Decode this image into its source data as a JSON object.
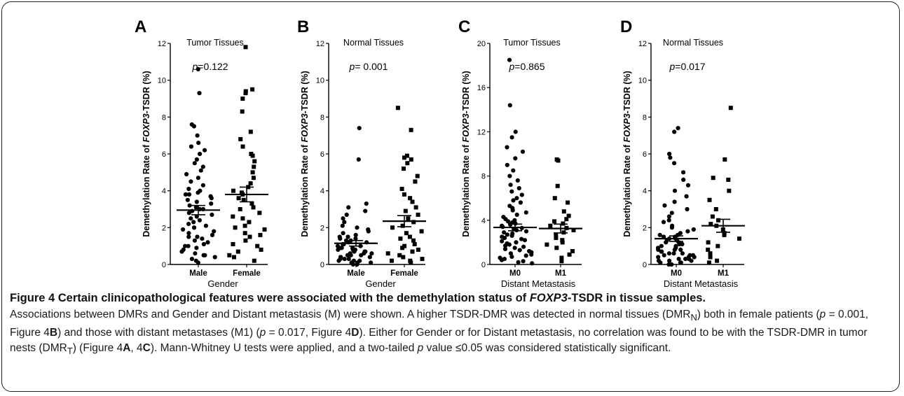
{
  "figure": {
    "caption_title_parts": [
      {
        "text": "Figure 4 Certain clinicopathological features were associated with the demethylation status of ",
        "italic": false
      },
      {
        "text": "FOXP3",
        "italic": true
      },
      {
        "text": "-TSDR in tissue samples.",
        "italic": false
      }
    ],
    "caption_body_parts": [
      {
        "text": "Associations between DMRs and Gender and Distant metastasis (M) were shown. A higher TSDR-DMR was detected in normal tissues (DMR"
      },
      {
        "text": "N",
        "sub": true
      },
      {
        "text": ") both in female patients ("
      },
      {
        "text": "p",
        "italic": true
      },
      {
        "text": " = 0.001, Figure 4"
      },
      {
        "text": "B",
        "bold": true
      },
      {
        "text": ") and those with distant metastases (M1) ("
      },
      {
        "text": "p",
        "italic": true
      },
      {
        "text": " = 0.017, Figure 4"
      },
      {
        "text": "D",
        "bold": true
      },
      {
        "text": "). Either for Gender or for Distant metastasis, no correlation was found to be with the TSDR-DMR in tumor nests (DMR"
      },
      {
        "text": "T",
        "sub": true
      },
      {
        "text": ") (Figure 4"
      },
      {
        "text": "A",
        "bold": true
      },
      {
        "text": ", 4"
      },
      {
        "text": "C",
        "bold": true
      },
      {
        "text": "). Mann-Whitney U tests were applied, and a two-tailed "
      },
      {
        "text": "p",
        "italic": true
      },
      {
        "text": " value ≤0.05 was considered statistically significant."
      }
    ]
  },
  "chart_data": [
    {
      "type": "scatter",
      "panel_letter": "A",
      "title": "Tumor Tissues",
      "p_value_label": "=0.122",
      "ylabel_parts": [
        {
          "text": "Demethylation Rate of "
        },
        {
          "text": "FOXP3",
          "italic": true
        },
        {
          "text": "-TSDR (%)"
        }
      ],
      "xlabel": "Gender",
      "categories": [
        "Male",
        "Female"
      ],
      "markers": [
        "circle",
        "square"
      ],
      "ylim": [
        0,
        12
      ],
      "yticks": [
        0,
        2,
        4,
        6,
        8,
        10,
        12
      ],
      "series": [
        {
          "values": [
            10.6,
            9.3,
            7.6,
            7.5,
            7.0,
            6.6,
            6.4,
            6.2,
            6.0,
            5.7,
            5.5,
            5.3,
            5.1,
            4.9,
            4.7,
            4.5,
            4.3,
            4.1,
            4.0,
            3.9,
            3.8,
            3.8,
            3.7,
            3.6,
            3.5,
            3.4,
            3.3,
            3.2,
            3.1,
            3.0,
            3.0,
            2.9,
            2.8,
            2.7,
            2.6,
            2.5,
            2.4,
            2.3,
            2.2,
            2.1,
            2.0,
            2.0,
            1.9,
            1.8,
            1.7,
            1.6,
            1.5,
            1.5,
            1.4,
            1.3,
            1.2,
            1.1,
            1.0,
            1.0,
            0.9,
            0.8,
            0.7,
            0.6,
            0.5,
            0.5,
            0.4,
            0.3,
            0.2,
            0.1
          ],
          "mean": 2.95,
          "sem": 0.25
        },
        {
          "values": [
            11.8,
            9.5,
            9.4,
            9.3,
            9.0,
            8.3,
            7.2,
            6.8,
            6.4,
            6.0,
            5.9,
            5.6,
            5.3,
            5.0,
            4.7,
            4.4,
            4.2,
            4.0,
            3.9,
            3.8,
            3.6,
            3.5,
            3.3,
            3.1,
            3.0,
            2.8,
            2.6,
            2.5,
            2.3,
            2.1,
            2.0,
            1.9,
            1.7,
            1.6,
            1.5,
            1.3,
            1.1,
            1.0,
            0.8,
            0.7,
            0.5,
            0.4,
            0.2
          ],
          "mean": 3.8,
          "sem": 0.4
        }
      ]
    },
    {
      "type": "scatter",
      "panel_letter": "B",
      "title": "Normal Tissues",
      "p_value_label": "= 0.001",
      "ylabel_parts": [
        {
          "text": "Demethylation Rate of "
        },
        {
          "text": "FOXP3",
          "italic": true
        },
        {
          "text": "-TSDR (%)"
        }
      ],
      "xlabel": "Gender",
      "categories": [
        "Male",
        "Female"
      ],
      "markers": [
        "circle",
        "square"
      ],
      "ylim": [
        0,
        12
      ],
      "yticks": [
        0,
        2,
        4,
        6,
        8,
        10,
        12
      ],
      "series": [
        {
          "values": [
            7.4,
            5.7,
            3.3,
            3.1,
            2.9,
            2.7,
            2.5,
            2.3,
            2.1,
            2.0,
            1.9,
            1.8,
            1.7,
            1.6,
            1.5,
            1.5,
            1.4,
            1.4,
            1.3,
            1.3,
            1.2,
            1.2,
            1.1,
            1.1,
            1.0,
            1.0,
            0.9,
            0.9,
            0.9,
            0.8,
            0.8,
            0.8,
            0.7,
            0.7,
            0.7,
            0.6,
            0.6,
            0.6,
            0.5,
            0.5,
            0.5,
            0.4,
            0.4,
            0.4,
            0.3,
            0.3,
            0.3,
            0.2,
            0.2,
            0.2,
            0.1,
            0.1,
            0.1,
            0.0,
            0.0
          ],
          "mean": 1.15,
          "sem": 0.15
        },
        {
          "values": [
            8.5,
            7.3,
            5.9,
            5.8,
            5.7,
            5.5,
            5.2,
            4.8,
            4.5,
            4.1,
            3.8,
            3.6,
            3.4,
            3.1,
            2.9,
            2.7,
            2.5,
            2.3,
            2.1,
            2.0,
            1.8,
            1.7,
            1.5,
            1.4,
            1.3,
            1.1,
            1.0,
            0.9,
            0.8,
            0.7,
            0.6,
            0.5,
            0.4,
            0.3,
            0.2,
            0.2,
            0.1
          ],
          "mean": 2.35,
          "sem": 0.3
        }
      ]
    },
    {
      "type": "scatter",
      "panel_letter": "C",
      "title": "Tumor Tissues",
      "p_value_label": "=0.865",
      "ylabel_parts": [
        {
          "text": "Demethylation Rate of "
        },
        {
          "text": "FOXP3",
          "italic": true
        },
        {
          "text": "-TSDR (%)"
        }
      ],
      "xlabel": "Distant Metastasis",
      "categories": [
        "M0",
        "M1"
      ],
      "markers": [
        "circle",
        "square"
      ],
      "ylim": [
        0,
        20
      ],
      "yticks": [
        0,
        4,
        8,
        12,
        16,
        20
      ],
      "series": [
        {
          "values": [
            18.5,
            14.4,
            12.0,
            11.5,
            10.6,
            10.2,
            9.6,
            9.0,
            8.5,
            8.0,
            7.6,
            7.2,
            6.9,
            6.6,
            6.3,
            6.0,
            5.8,
            5.6,
            5.3,
            5.1,
            4.9,
            4.7,
            4.5,
            4.3,
            4.1,
            4.0,
            3.9,
            3.8,
            3.7,
            3.6,
            3.5,
            3.4,
            3.3,
            3.2,
            3.1,
            3.0,
            2.9,
            2.8,
            2.7,
            2.6,
            2.5,
            2.4,
            2.3,
            2.2,
            2.1,
            2.0,
            1.9,
            1.8,
            1.7,
            1.6,
            1.5,
            1.4,
            1.3,
            1.2,
            1.1,
            1.0,
            0.9,
            0.8,
            0.7,
            0.6,
            0.5,
            0.4,
            0.3,
            0.2,
            0.1
          ],
          "mean": 3.35,
          "sem": 0.3
        },
        {
          "values": [
            9.5,
            9.4,
            7.1,
            6.0,
            5.6,
            4.8,
            4.4,
            4.1,
            3.9,
            3.7,
            3.5,
            3.3,
            3.1,
            2.9,
            2.7,
            2.4,
            2.2,
            2.0,
            1.8,
            1.5,
            1.2,
            0.9,
            0.6,
            0.3
          ],
          "mean": 3.25,
          "sem": 0.4
        }
      ]
    },
    {
      "type": "scatter",
      "panel_letter": "D",
      "title": "Normal Tissues",
      "p_value_label": "=0.017",
      "ylabel_parts": [
        {
          "text": "Demethylation Rate of "
        },
        {
          "text": "FOXP3",
          "italic": true
        },
        {
          "text": "-TSDR (%)"
        }
      ],
      "xlabel": "Distant Metastasis",
      "categories": [
        "M0",
        "M1"
      ],
      "markers": [
        "circle",
        "square"
      ],
      "ylim": [
        0,
        12
      ],
      "yticks": [
        0,
        2,
        4,
        6,
        8,
        10,
        12
      ],
      "series": [
        {
          "values": [
            7.4,
            7.2,
            6.0,
            5.8,
            5.5,
            5.0,
            4.6,
            4.3,
            4.0,
            3.7,
            3.4,
            3.2,
            3.0,
            2.8,
            2.6,
            2.4,
            2.3,
            2.1,
            2.0,
            1.9,
            1.8,
            1.7,
            1.6,
            1.6,
            1.5,
            1.5,
            1.4,
            1.4,
            1.3,
            1.3,
            1.2,
            1.2,
            1.1,
            1.1,
            1.0,
            1.0,
            0.9,
            0.9,
            0.8,
            0.8,
            0.8,
            0.7,
            0.7,
            0.6,
            0.6,
            0.6,
            0.5,
            0.5,
            0.5,
            0.4,
            0.4,
            0.4,
            0.3,
            0.3,
            0.3,
            0.2,
            0.2,
            0.2,
            0.1,
            0.1,
            0.1,
            0.0,
            0.0
          ],
          "mean": 1.4,
          "sem": 0.15
        },
        {
          "values": [
            8.5,
            5.7,
            4.7,
            4.6,
            4.0,
            3.5,
            3.0,
            2.6,
            2.4,
            2.2,
            2.1,
            1.9,
            1.7,
            1.6,
            1.4,
            1.2,
            1.0,
            0.8,
            0.6,
            0.4,
            0.2,
            0.1
          ],
          "mean": 2.1,
          "sem": 0.35
        }
      ]
    }
  ]
}
